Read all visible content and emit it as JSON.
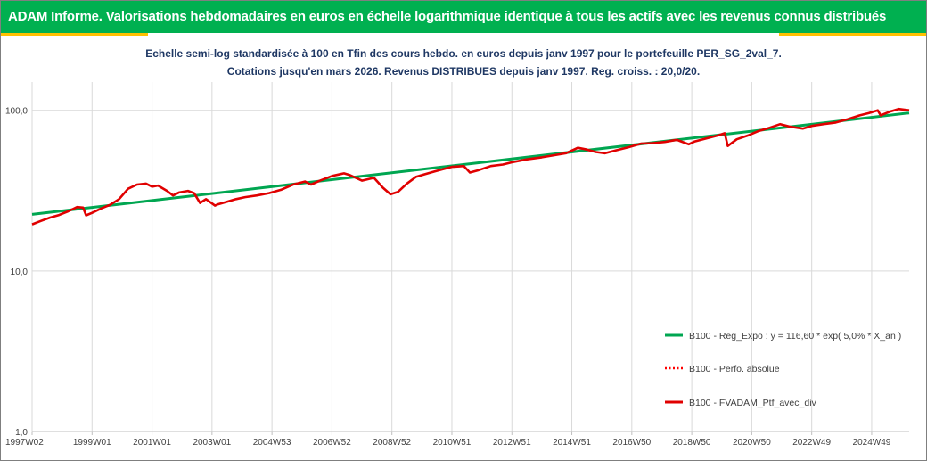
{
  "header": {
    "title": "ADAM Informe. Valorisations hebdomadaires en euros en échelle logarithmique identique à tous les actifs avec les revenus connus distribués"
  },
  "subtitle": {
    "line1": "Echelle semi-log standardisée  à 100 en Tfin des cours hebdo.  en euros depuis janv 1997 pour le portefeuille PER_SG_2val_7.",
    "line2": "Cotations  jusqu'en mars 2026. Revenus DISTRIBUES depuis janv 1997. Reg. croiss. : 20,0/20."
  },
  "colors": {
    "header_bg": "#00b050",
    "accent": "#ffc000",
    "regression": "#00a651",
    "perf": "#ff0000",
    "portfolio": "#e00000",
    "grid": "#d9d9d9"
  },
  "chart_data": {
    "type": "line",
    "scale": "log",
    "ylim": [
      1,
      150
    ],
    "y_ticks": [
      {
        "value": 1,
        "label": "1,0"
      },
      {
        "value": 10,
        "label": "10,0"
      },
      {
        "value": 100,
        "label": "100,0"
      }
    ],
    "xlim": [
      1997.0,
      2026.25
    ],
    "x_ticks": [
      {
        "x": 1997.0,
        "label": "1997W02"
      },
      {
        "x": 1999.0,
        "label": "1999W01"
      },
      {
        "x": 2001.0,
        "label": "2001W01"
      },
      {
        "x": 2003.0,
        "label": "2003W01"
      },
      {
        "x": 2005.0,
        "label": "2004W53"
      },
      {
        "x": 2007.0,
        "label": "2006W52"
      },
      {
        "x": 2009.0,
        "label": "2008W52"
      },
      {
        "x": 2011.0,
        "label": "2010W51"
      },
      {
        "x": 2013.0,
        "label": "2012W51"
      },
      {
        "x": 2015.0,
        "label": "2014W51"
      },
      {
        "x": 2017.0,
        "label": "2016W50"
      },
      {
        "x": 2019.0,
        "label": "2018W50"
      },
      {
        "x": 2021.0,
        "label": "2020W50"
      },
      {
        "x": 2023.0,
        "label": "2022W49"
      },
      {
        "x": 2025.0,
        "label": "2024W49"
      }
    ],
    "grid": true,
    "legend_position": "bottom-right",
    "series": [
      {
        "name": "B100 - Reg_Expo : y = 116,60 * exp( 5,0% * X_an )",
        "style": "solid",
        "color": "#00a651",
        "points": [
          [
            1997.0,
            22.5
          ],
          [
            2026.25,
            96.3
          ]
        ]
      },
      {
        "name": "B100 - Perfo. absolue",
        "style": "dotted",
        "color": "#ff0000",
        "points": []
      },
      {
        "name": "B100 - FVADAM_Ptf_avec_div",
        "style": "solid",
        "color": "#e00000",
        "points": [
          [
            1997.0,
            19.5
          ],
          [
            1997.3,
            20.5
          ],
          [
            1997.6,
            21.5
          ],
          [
            1997.9,
            22.3
          ],
          [
            1998.2,
            23.5
          ],
          [
            1998.5,
            25.0
          ],
          [
            1998.7,
            24.8
          ],
          [
            1998.8,
            22.2
          ],
          [
            1999.0,
            23.0
          ],
          [
            1999.3,
            24.5
          ],
          [
            1999.6,
            25.8
          ],
          [
            1999.9,
            28.0
          ],
          [
            2000.2,
            32.5
          ],
          [
            2000.5,
            34.5
          ],
          [
            2000.8,
            35.0
          ],
          [
            2001.0,
            33.5
          ],
          [
            2001.2,
            34.0
          ],
          [
            2001.5,
            31.5
          ],
          [
            2001.7,
            29.5
          ],
          [
            2001.9,
            30.8
          ],
          [
            2002.2,
            31.5
          ],
          [
            2002.4,
            30.5
          ],
          [
            2002.6,
            26.5
          ],
          [
            2002.8,
            28.0
          ],
          [
            2003.1,
            25.5
          ],
          [
            2003.2,
            26.0
          ],
          [
            2003.5,
            27.0
          ],
          [
            2003.8,
            28.0
          ],
          [
            2004.1,
            28.8
          ],
          [
            2004.5,
            29.5
          ],
          [
            2004.9,
            30.5
          ],
          [
            2005.3,
            32.0
          ],
          [
            2005.7,
            34.5
          ],
          [
            2006.1,
            36.0
          ],
          [
            2006.3,
            34.5
          ],
          [
            2006.6,
            36.5
          ],
          [
            2007.0,
            39.0
          ],
          [
            2007.4,
            40.5
          ],
          [
            2007.6,
            39.5
          ],
          [
            2008.0,
            36.5
          ],
          [
            2008.4,
            38.0
          ],
          [
            2008.7,
            33.0
          ],
          [
            2008.95,
            30.0
          ],
          [
            2009.2,
            31.0
          ],
          [
            2009.5,
            35.0
          ],
          [
            2009.8,
            38.5
          ],
          [
            2010.1,
            40.0
          ],
          [
            2010.4,
            41.5
          ],
          [
            2010.7,
            43.0
          ],
          [
            2011.0,
            44.5
          ],
          [
            2011.4,
            45.0
          ],
          [
            2011.6,
            41.0
          ],
          [
            2011.9,
            42.5
          ],
          [
            2012.3,
            45.0
          ],
          [
            2012.7,
            46.0
          ],
          [
            2013.0,
            47.5
          ],
          [
            2013.5,
            49.5
          ],
          [
            2014.0,
            51.0
          ],
          [
            2014.4,
            52.5
          ],
          [
            2014.8,
            54.0
          ],
          [
            2015.2,
            58.5
          ],
          [
            2015.5,
            57.0
          ],
          [
            2015.8,
            55.0
          ],
          [
            2016.1,
            54.0
          ],
          [
            2016.5,
            56.5
          ],
          [
            2016.9,
            59.0
          ],
          [
            2017.3,
            62.0
          ],
          [
            2017.7,
            62.5
          ],
          [
            2018.1,
            63.5
          ],
          [
            2018.5,
            65.5
          ],
          [
            2018.9,
            61.5
          ],
          [
            2019.1,
            64.0
          ],
          [
            2019.5,
            67.0
          ],
          [
            2019.9,
            70.0
          ],
          [
            2020.1,
            72.0
          ],
          [
            2020.2,
            60.0
          ],
          [
            2020.5,
            66.0
          ],
          [
            2020.9,
            70.0
          ],
          [
            2021.2,
            74.0
          ],
          [
            2021.6,
            78.0
          ],
          [
            2021.95,
            82.0
          ],
          [
            2022.3,
            79.0
          ],
          [
            2022.7,
            77.0
          ],
          [
            2023.0,
            80.0
          ],
          [
            2023.4,
            82.0
          ],
          [
            2023.8,
            84.0
          ],
          [
            2024.2,
            88.0
          ],
          [
            2024.6,
            93.0
          ],
          [
            2024.9,
            96.0
          ],
          [
            2025.2,
            100.0
          ],
          [
            2025.3,
            93.0
          ],
          [
            2025.6,
            98.0
          ],
          [
            2025.9,
            102.0
          ],
          [
            2026.25,
            100.0
          ]
        ]
      }
    ]
  }
}
